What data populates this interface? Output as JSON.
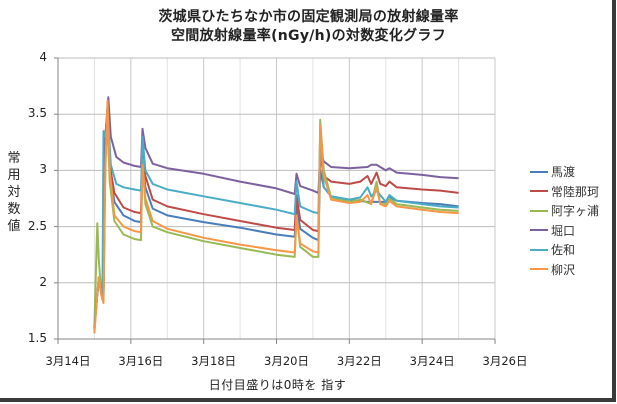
{
  "chart_data": {
    "type": "line",
    "title": "茨城県ひたちなか市の固定観測局の放射線量率",
    "subtitle": "空間放射線量率(nGy/h)の対数変化グラフ",
    "xlabel": "日付目盛りは0時を 指す",
    "ylabel": "常用対数値",
    "ylim": [
      1.5,
      4
    ],
    "yticks": [
      "1.5",
      "2",
      "2.5",
      "3",
      "3.5",
      "4"
    ],
    "xticks": [
      "3月14日",
      "3月16日",
      "3月18日",
      "3月20日",
      "3月22日",
      "3月24日",
      "3月26日"
    ],
    "x_unit": "days since 3月14日 0時",
    "xlim": [
      0,
      12
    ],
    "grid": true,
    "legend_position": "right",
    "series": [
      {
        "name": "馬渡",
        "color": "#4a7ebb",
        "points": [
          [
            1.0,
            1.62
          ],
          [
            1.08,
            1.9
          ],
          [
            1.12,
            2.0
          ],
          [
            1.18,
            1.95
          ],
          [
            1.25,
            1.9
          ],
          [
            1.3,
            3.2
          ],
          [
            1.35,
            3.4
          ],
          [
            1.42,
            3.0
          ],
          [
            1.55,
            2.72
          ],
          [
            1.8,
            2.6
          ],
          [
            2.1,
            2.55
          ],
          [
            2.28,
            2.54
          ],
          [
            2.32,
            3.1
          ],
          [
            2.4,
            2.85
          ],
          [
            2.6,
            2.66
          ],
          [
            3.0,
            2.6
          ],
          [
            4.0,
            2.54
          ],
          [
            5.0,
            2.49
          ],
          [
            6.0,
            2.43
          ],
          [
            6.5,
            2.41
          ],
          [
            6.55,
            2.7
          ],
          [
            6.65,
            2.48
          ],
          [
            7.0,
            2.4
          ],
          [
            7.15,
            2.38
          ],
          [
            7.2,
            3.0
          ],
          [
            7.3,
            2.85
          ],
          [
            7.5,
            2.77
          ],
          [
            8.0,
            2.74
          ],
          [
            8.5,
            2.72
          ],
          [
            9.0,
            2.72
          ],
          [
            9.1,
            2.76
          ],
          [
            9.3,
            2.73
          ],
          [
            10.0,
            2.71
          ],
          [
            10.5,
            2.7
          ],
          [
            11.0,
            2.68
          ]
        ]
      },
      {
        "name": "常陸那珂",
        "color": "#be4b48",
        "points": [
          [
            1.0,
            1.6
          ],
          [
            1.08,
            1.9
          ],
          [
            1.12,
            2.05
          ],
          [
            1.18,
            1.95
          ],
          [
            1.25,
            1.88
          ],
          [
            1.3,
            3.3
          ],
          [
            1.35,
            3.5
          ],
          [
            1.42,
            3.05
          ],
          [
            1.55,
            2.8
          ],
          [
            1.8,
            2.67
          ],
          [
            2.1,
            2.63
          ],
          [
            2.28,
            2.62
          ],
          [
            2.32,
            3.2
          ],
          [
            2.4,
            2.95
          ],
          [
            2.6,
            2.74
          ],
          [
            3.0,
            2.68
          ],
          [
            4.0,
            2.61
          ],
          [
            5.0,
            2.55
          ],
          [
            6.0,
            2.49
          ],
          [
            6.5,
            2.47
          ],
          [
            6.55,
            2.78
          ],
          [
            6.65,
            2.56
          ],
          [
            7.0,
            2.47
          ],
          [
            7.15,
            2.46
          ],
          [
            7.2,
            3.15
          ],
          [
            7.3,
            2.95
          ],
          [
            7.5,
            2.9
          ],
          [
            8.0,
            2.88
          ],
          [
            8.3,
            2.9
          ],
          [
            8.5,
            2.95
          ],
          [
            8.6,
            2.88
          ],
          [
            8.75,
            2.98
          ],
          [
            8.85,
            2.88
          ],
          [
            9.0,
            2.86
          ],
          [
            9.1,
            2.9
          ],
          [
            9.3,
            2.85
          ],
          [
            10.0,
            2.83
          ],
          [
            10.5,
            2.82
          ],
          [
            11.0,
            2.8
          ]
        ]
      },
      {
        "name": "阿字ヶ浦",
        "color": "#98b954",
        "points": [
          [
            1.0,
            1.6
          ],
          [
            1.05,
            2.2
          ],
          [
            1.08,
            2.53
          ],
          [
            1.12,
            2.2
          ],
          [
            1.18,
            1.95
          ],
          [
            1.25,
            1.92
          ],
          [
            1.3,
            3.0
          ],
          [
            1.35,
            3.55
          ],
          [
            1.42,
            2.9
          ],
          [
            1.55,
            2.55
          ],
          [
            1.8,
            2.43
          ],
          [
            2.1,
            2.39
          ],
          [
            2.28,
            2.38
          ],
          [
            2.32,
            3.1
          ],
          [
            2.4,
            2.7
          ],
          [
            2.6,
            2.5
          ],
          [
            3.0,
            2.45
          ],
          [
            4.0,
            2.37
          ],
          [
            5.0,
            2.31
          ],
          [
            5.5,
            2.28
          ],
          [
            6.0,
            2.25
          ],
          [
            6.5,
            2.23
          ],
          [
            6.55,
            2.6
          ],
          [
            6.65,
            2.32
          ],
          [
            7.0,
            2.23
          ],
          [
            7.15,
            2.23
          ],
          [
            7.2,
            3.45
          ],
          [
            7.3,
            3.0
          ],
          [
            7.5,
            2.76
          ],
          [
            8.0,
            2.72
          ],
          [
            8.3,
            2.74
          ],
          [
            8.6,
            2.7
          ],
          [
            8.75,
            2.9
          ],
          [
            8.85,
            2.7
          ],
          [
            9.0,
            2.7
          ],
          [
            9.1,
            2.75
          ],
          [
            9.3,
            2.7
          ],
          [
            10.0,
            2.67
          ],
          [
            10.5,
            2.65
          ],
          [
            11.0,
            2.64
          ]
        ]
      },
      {
        "name": "堀口",
        "color": "#7d60a0",
        "points": [
          [
            1.0,
            1.58
          ],
          [
            1.08,
            1.9
          ],
          [
            1.12,
            2.0
          ],
          [
            1.18,
            1.95
          ],
          [
            1.25,
            1.9
          ],
          [
            1.3,
            3.3
          ],
          [
            1.38,
            3.65
          ],
          [
            1.45,
            3.3
          ],
          [
            1.6,
            3.12
          ],
          [
            1.8,
            3.07
          ],
          [
            2.1,
            3.04
          ],
          [
            2.28,
            3.03
          ],
          [
            2.32,
            3.37
          ],
          [
            2.4,
            3.2
          ],
          [
            2.6,
            3.06
          ],
          [
            3.0,
            3.02
          ],
          [
            4.0,
            2.97
          ],
          [
            5.0,
            2.9
          ],
          [
            6.0,
            2.84
          ],
          [
            6.5,
            2.79
          ],
          [
            6.55,
            2.97
          ],
          [
            6.65,
            2.86
          ],
          [
            7.0,
            2.82
          ],
          [
            7.15,
            2.8
          ],
          [
            7.2,
            3.15
          ],
          [
            7.3,
            3.08
          ],
          [
            7.5,
            3.03
          ],
          [
            8.0,
            3.02
          ],
          [
            8.5,
            3.03
          ],
          [
            8.6,
            3.05
          ],
          [
            8.75,
            3.05
          ],
          [
            9.0,
            3.0
          ],
          [
            9.1,
            3.02
          ],
          [
            9.3,
            2.98
          ],
          [
            10.0,
            2.96
          ],
          [
            10.5,
            2.94
          ],
          [
            11.0,
            2.93
          ]
        ]
      },
      {
        "name": "佐和",
        "color": "#4bacc6",
        "points": [
          [
            1.0,
            1.6
          ],
          [
            1.08,
            1.9
          ],
          [
            1.12,
            2.0
          ],
          [
            1.18,
            1.95
          ],
          [
            1.22,
            1.85
          ],
          [
            1.25,
            3.35
          ],
          [
            1.3,
            3.3
          ],
          [
            1.38,
            3.45
          ],
          [
            1.45,
            3.05
          ],
          [
            1.6,
            2.88
          ],
          [
            1.8,
            2.85
          ],
          [
            2.1,
            2.83
          ],
          [
            2.28,
            2.82
          ],
          [
            2.32,
            3.3
          ],
          [
            2.4,
            3.0
          ],
          [
            2.6,
            2.88
          ],
          [
            3.0,
            2.83
          ],
          [
            4.0,
            2.77
          ],
          [
            5.0,
            2.71
          ],
          [
            6.0,
            2.65
          ],
          [
            6.5,
            2.61
          ],
          [
            6.55,
            2.9
          ],
          [
            6.65,
            2.68
          ],
          [
            7.0,
            2.63
          ],
          [
            7.15,
            2.62
          ],
          [
            7.2,
            3.3
          ],
          [
            7.3,
            2.85
          ],
          [
            7.5,
            2.77
          ],
          [
            8.0,
            2.74
          ],
          [
            8.3,
            2.76
          ],
          [
            8.5,
            2.85
          ],
          [
            8.6,
            2.77
          ],
          [
            8.75,
            2.82
          ],
          [
            9.0,
            2.72
          ],
          [
            9.1,
            2.78
          ],
          [
            9.3,
            2.73
          ],
          [
            10.0,
            2.7
          ],
          [
            10.5,
            2.68
          ],
          [
            11.0,
            2.67
          ]
        ]
      },
      {
        "name": "柳沢",
        "color": "#f79646",
        "points": [
          [
            1.0,
            1.55
          ],
          [
            1.08,
            1.9
          ],
          [
            1.12,
            2.05
          ],
          [
            1.18,
            1.9
          ],
          [
            1.25,
            1.82
          ],
          [
            1.3,
            3.0
          ],
          [
            1.36,
            3.62
          ],
          [
            1.42,
            3.0
          ],
          [
            1.55,
            2.6
          ],
          [
            1.8,
            2.5
          ],
          [
            2.1,
            2.46
          ],
          [
            2.28,
            2.45
          ],
          [
            2.32,
            3.05
          ],
          [
            2.4,
            2.75
          ],
          [
            2.6,
            2.55
          ],
          [
            3.0,
            2.48
          ],
          [
            4.0,
            2.4
          ],
          [
            5.0,
            2.34
          ],
          [
            6.0,
            2.29
          ],
          [
            6.5,
            2.27
          ],
          [
            6.55,
            2.6
          ],
          [
            6.65,
            2.35
          ],
          [
            7.0,
            2.28
          ],
          [
            7.15,
            2.27
          ],
          [
            7.2,
            3.4
          ],
          [
            7.3,
            2.95
          ],
          [
            7.5,
            2.74
          ],
          [
            8.0,
            2.71
          ],
          [
            8.3,
            2.72
          ],
          [
            8.5,
            2.78
          ],
          [
            8.6,
            2.7
          ],
          [
            8.75,
            2.85
          ],
          [
            8.85,
            2.7
          ],
          [
            9.0,
            2.68
          ],
          [
            9.1,
            2.73
          ],
          [
            9.3,
            2.68
          ],
          [
            10.0,
            2.65
          ],
          [
            10.5,
            2.63
          ],
          [
            11.0,
            2.62
          ]
        ]
      }
    ]
  }
}
